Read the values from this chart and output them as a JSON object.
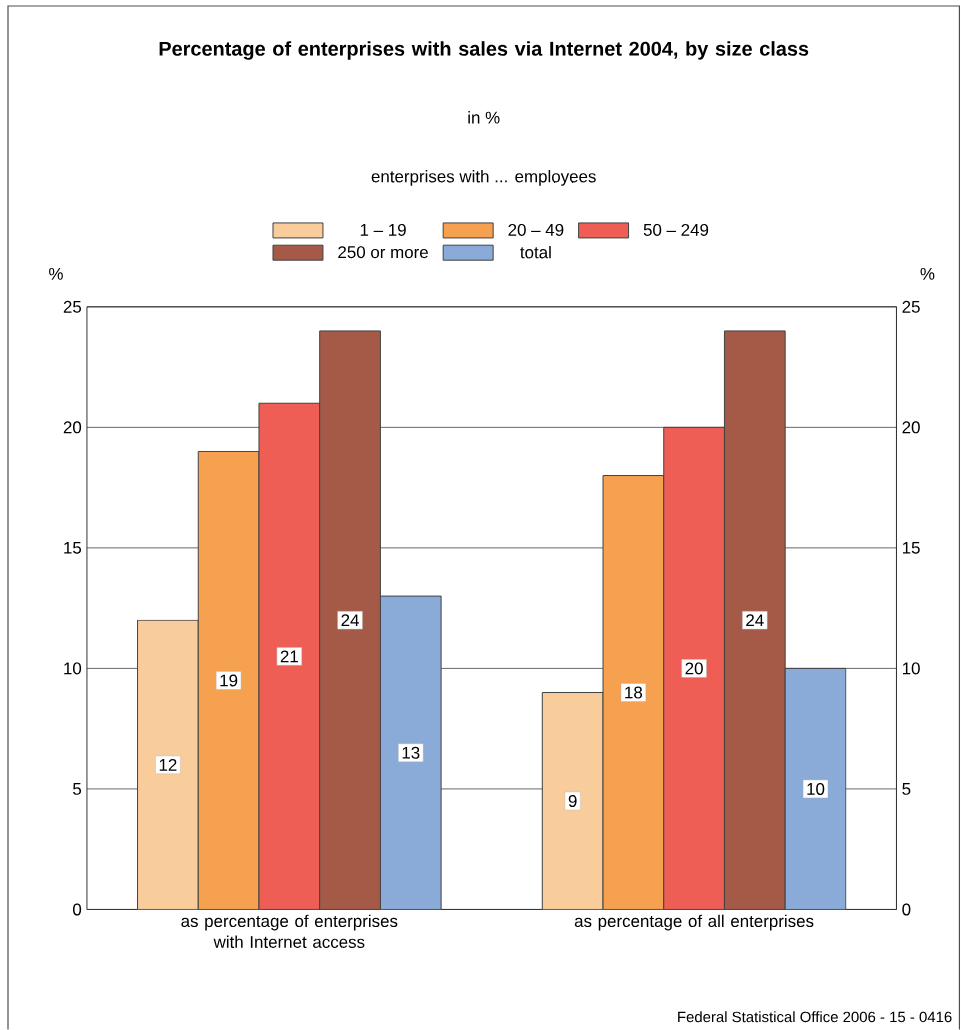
{
  "chart_data": {
    "type": "bar",
    "title": "Percentage of enterprises with sales via Internet 2004, by size class",
    "subtitle": "in %",
    "legend_title": "enterprises with ... employees",
    "ylabel": "%",
    "y2label": "%",
    "categories": [
      "as percentage of enterprises with Internet access",
      "as percentage of all enterprises"
    ],
    "series": [
      {
        "name": "1 – 19",
        "color": "#f9cc9c",
        "values": [
          12,
          9
        ]
      },
      {
        "name": "20 – 49",
        "color": "#f5a150",
        "values": [
          19,
          18
        ]
      },
      {
        "name": "50 – 249",
        "color": "#ee5e55",
        "values": [
          21,
          20
        ]
      },
      {
        "name": "250 or more",
        "color": "#a55a48",
        "values": [
          24,
          24
        ]
      },
      {
        "name": "total",
        "color": "#8aabd8",
        "values": [
          13,
          10
        ]
      }
    ],
    "ylim": [
      0,
      25
    ],
    "yticks": [
      0,
      5,
      10,
      15,
      20,
      25
    ],
    "y2lim": [
      0,
      25
    ],
    "y2ticks": [
      0,
      5,
      10,
      15,
      20,
      25
    ],
    "grid": "y",
    "legend": "top",
    "data_labels": true,
    "annotations": [
      "Federal Statistical Office 2006 - 15 - 0416"
    ]
  }
}
